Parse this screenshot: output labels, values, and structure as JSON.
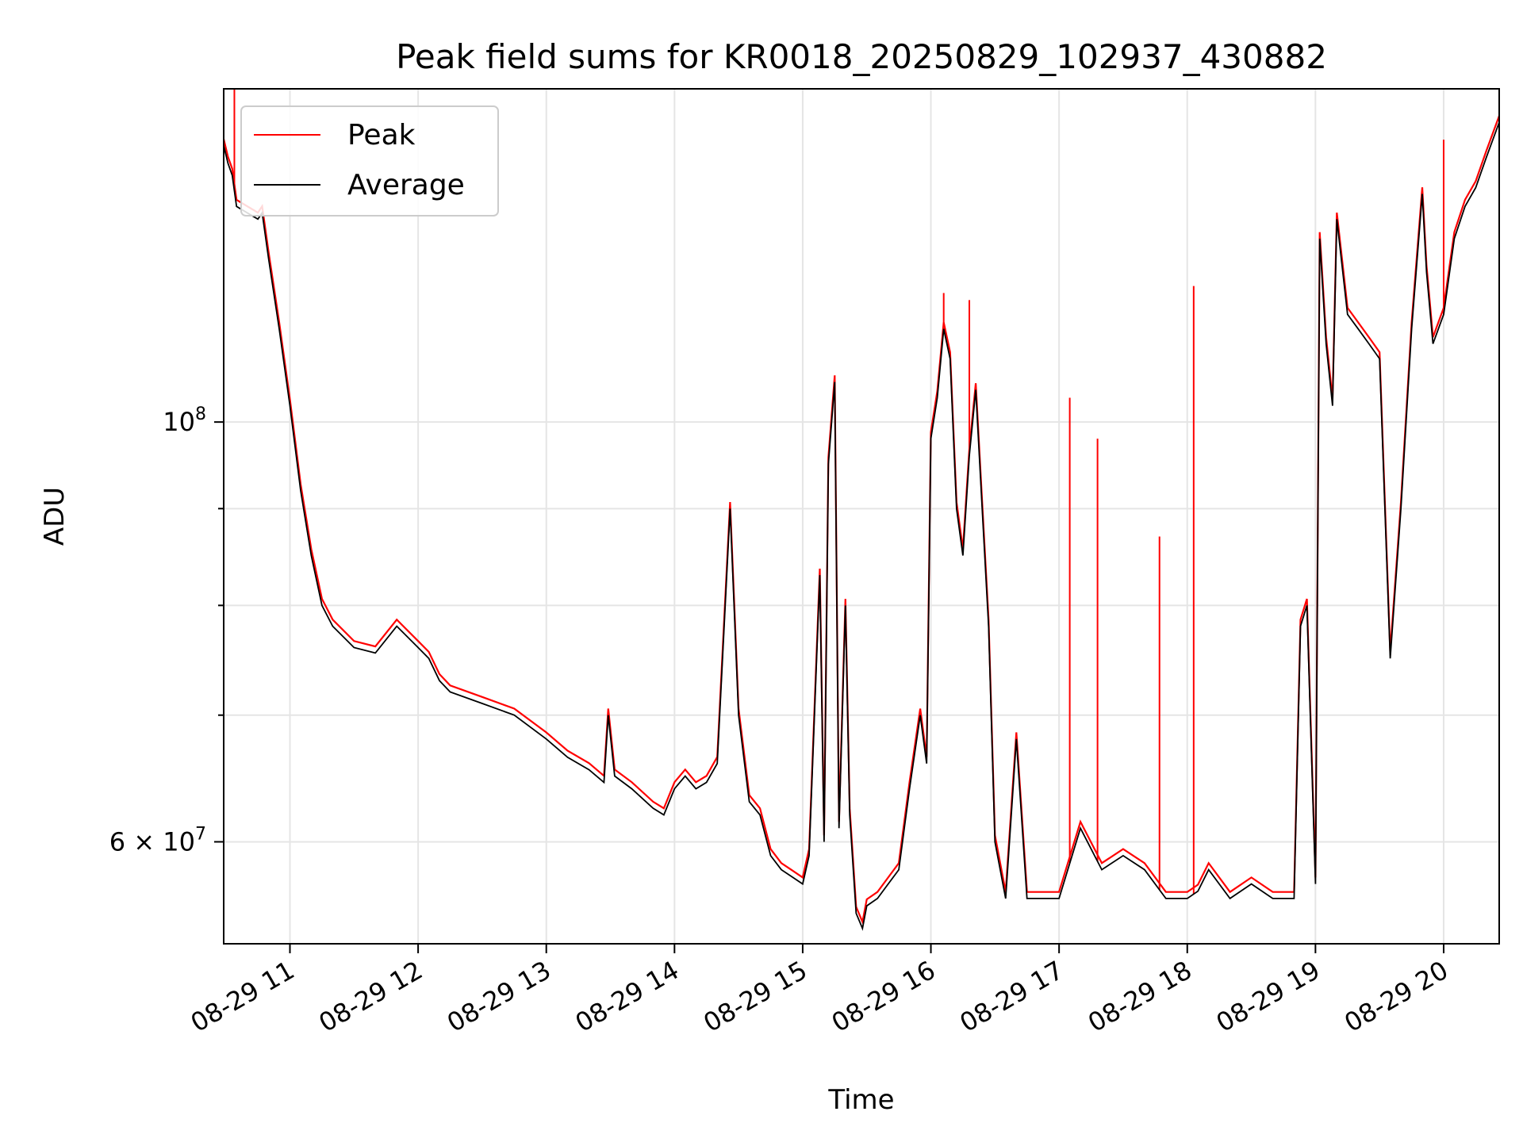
{
  "chart_data": {
    "type": "line",
    "title": "Peak field sums for KR0018_20250829_102937_430882",
    "xlabel": "Time",
    "ylabel": "ADU",
    "yscale": "log",
    "ylim": [
      53000000,
      150000000
    ],
    "xlim": [
      "2025-08-29 10:29",
      "2025-08-29 20:26"
    ],
    "grid": true,
    "legend_position": "top-left",
    "x_tick_labels": [
      "08-29 11",
      "08-29 12",
      "08-29 13",
      "08-29 14",
      "08-29 15",
      "08-29 16",
      "08-29 17",
      "08-29 18",
      "08-29 19",
      "08-29 20"
    ],
    "x_tick_times": [
      "2025-08-29 11:00",
      "2025-08-29 12:00",
      "2025-08-29 13:00",
      "2025-08-29 14:00",
      "2025-08-29 15:00",
      "2025-08-29 16:00",
      "2025-08-29 17:00",
      "2025-08-29 18:00",
      "2025-08-29 19:00",
      "2025-08-29 20:00"
    ],
    "y_major_ticks": [
      {
        "value": 60000000,
        "mantissa": "6",
        "exp": "7"
      },
      {
        "value": 100000000,
        "mantissa": "",
        "exp": "8"
      }
    ],
    "y_minor_ticks": [
      70000000,
      80000000,
      90000000
    ],
    "series": [
      {
        "name": "Average",
        "color": "#000000",
        "x": [
          "2025-08-29 10:29",
          "2025-08-29 10:31",
          "2025-08-29 10:33",
          "2025-08-29 10:35",
          "2025-08-29 10:40",
          "2025-08-29 10:45",
          "2025-08-29 10:47",
          "2025-08-29 10:50",
          "2025-08-29 10:55",
          "2025-08-29 11:00",
          "2025-08-29 11:05",
          "2025-08-29 11:10",
          "2025-08-29 11:15",
          "2025-08-29 11:20",
          "2025-08-29 11:30",
          "2025-08-29 11:40",
          "2025-08-29 11:50",
          "2025-08-29 12:00",
          "2025-08-29 12:05",
          "2025-08-29 12:10",
          "2025-08-29 12:15",
          "2025-08-29 12:30",
          "2025-08-29 12:45",
          "2025-08-29 13:00",
          "2025-08-29 13:10",
          "2025-08-29 13:20",
          "2025-08-29 13:27",
          "2025-08-29 13:29",
          "2025-08-29 13:32",
          "2025-08-29 13:40",
          "2025-08-29 13:50",
          "2025-08-29 13:55",
          "2025-08-29 14:00",
          "2025-08-29 14:05",
          "2025-08-29 14:10",
          "2025-08-29 14:15",
          "2025-08-29 14:20",
          "2025-08-29 14:26",
          "2025-08-29 14:30",
          "2025-08-29 14:35",
          "2025-08-29 14:40",
          "2025-08-29 14:45",
          "2025-08-29 14:50",
          "2025-08-29 14:55",
          "2025-08-29 15:00",
          "2025-08-29 15:03",
          "2025-08-29 15:08",
          "2025-08-29 15:10",
          "2025-08-29 15:12",
          "2025-08-29 15:15",
          "2025-08-29 15:17",
          "2025-08-29 15:20",
          "2025-08-29 15:22",
          "2025-08-29 15:25",
          "2025-08-29 15:28",
          "2025-08-29 15:30",
          "2025-08-29 15:35",
          "2025-08-29 15:40",
          "2025-08-29 15:45",
          "2025-08-29 15:50",
          "2025-08-29 15:55",
          "2025-08-29 15:58",
          "2025-08-29 16:00",
          "2025-08-29 16:03",
          "2025-08-29 16:06",
          "2025-08-29 16:09",
          "2025-08-29 16:12",
          "2025-08-29 16:15",
          "2025-08-29 16:18",
          "2025-08-29 16:21",
          "2025-08-29 16:24",
          "2025-08-29 16:27",
          "2025-08-29 16:30",
          "2025-08-29 16:35",
          "2025-08-29 16:40",
          "2025-08-29 16:45",
          "2025-08-29 16:50",
          "2025-08-29 17:00",
          "2025-08-29 17:10",
          "2025-08-29 17:20",
          "2025-08-29 17:30",
          "2025-08-29 17:40",
          "2025-08-29 17:50",
          "2025-08-29 18:00",
          "2025-08-29 18:05",
          "2025-08-29 18:10",
          "2025-08-29 18:20",
          "2025-08-29 18:30",
          "2025-08-29 18:40",
          "2025-08-29 18:50",
          "2025-08-29 18:53",
          "2025-08-29 18:56",
          "2025-08-29 19:00",
          "2025-08-29 19:02",
          "2025-08-29 19:05",
          "2025-08-29 19:08",
          "2025-08-29 19:10",
          "2025-08-29 19:15",
          "2025-08-29 19:20",
          "2025-08-29 19:25",
          "2025-08-29 19:30",
          "2025-08-29 19:35",
          "2025-08-29 19:40",
          "2025-08-29 19:45",
          "2025-08-29 19:50",
          "2025-08-29 19:52",
          "2025-08-29 19:55",
          "2025-08-29 20:00",
          "2025-08-29 20:05",
          "2025-08-29 20:10",
          "2025-08-29 20:15",
          "2025-08-29 20:20",
          "2025-08-29 20:26"
        ],
        "values": [
          140000000,
          137000000,
          135000000,
          130000000,
          129000000,
          128000000,
          129000000,
          122000000,
          112000000,
          102000000,
          92000000,
          85000000,
          80000000,
          78000000,
          76000000,
          75500000,
          78000000,
          76000000,
          75000000,
          73000000,
          72000000,
          71000000,
          70000000,
          68000000,
          66500000,
          65500000,
          64500000,
          70000000,
          65000000,
          64000000,
          62500000,
          62000000,
          64000000,
          65000000,
          64000000,
          64500000,
          66000000,
          90000000,
          70000000,
          63000000,
          62000000,
          59000000,
          58000000,
          57500000,
          57000000,
          59000000,
          83000000,
          60000000,
          95000000,
          105000000,
          61000000,
          80000000,
          62000000,
          55000000,
          54000000,
          55500000,
          56000000,
          57000000,
          58000000,
          64000000,
          70000000,
          66000000,
          98000000,
          103000000,
          112000000,
          108000000,
          90000000,
          85000000,
          96000000,
          104000000,
          90000000,
          78000000,
          60000000,
          56000000,
          68000000,
          56000000,
          56000000,
          56000000,
          61000000,
          58000000,
          59000000,
          58000000,
          56000000,
          56000000,
          56500000,
          58000000,
          56000000,
          57000000,
          56000000,
          56000000,
          78000000,
          80000000,
          57000000,
          125000000,
          110000000,
          102000000,
          128000000,
          114000000,
          112000000,
          110000000,
          108000000,
          75000000,
          90000000,
          112000000,
          132000000,
          120000000,
          110000000,
          114000000,
          125000000,
          130000000,
          133000000,
          138000000,
          144000000
        ]
      },
      {
        "name": "Peak",
        "color": "#ff0000",
        "spikes": [
          {
            "x": "2025-08-29 10:34",
            "value": 155000000
          },
          {
            "x": "2025-08-29 16:06",
            "value": 117000000
          },
          {
            "x": "2025-08-29 16:18",
            "value": 116000000
          },
          {
            "x": "2025-08-29 17:05",
            "value": 103000000
          },
          {
            "x": "2025-08-29 17:18",
            "value": 98000000
          },
          {
            "x": "2025-08-29 17:47",
            "value": 87000000
          },
          {
            "x": "2025-08-29 18:03",
            "value": 118000000
          },
          {
            "x": "2025-08-29 20:00",
            "value": 141000000
          }
        ]
      }
    ]
  },
  "legend": {
    "items": [
      {
        "label": "Peak",
        "color": "#ff0000"
      },
      {
        "label": "Average",
        "color": "#000000"
      }
    ]
  }
}
